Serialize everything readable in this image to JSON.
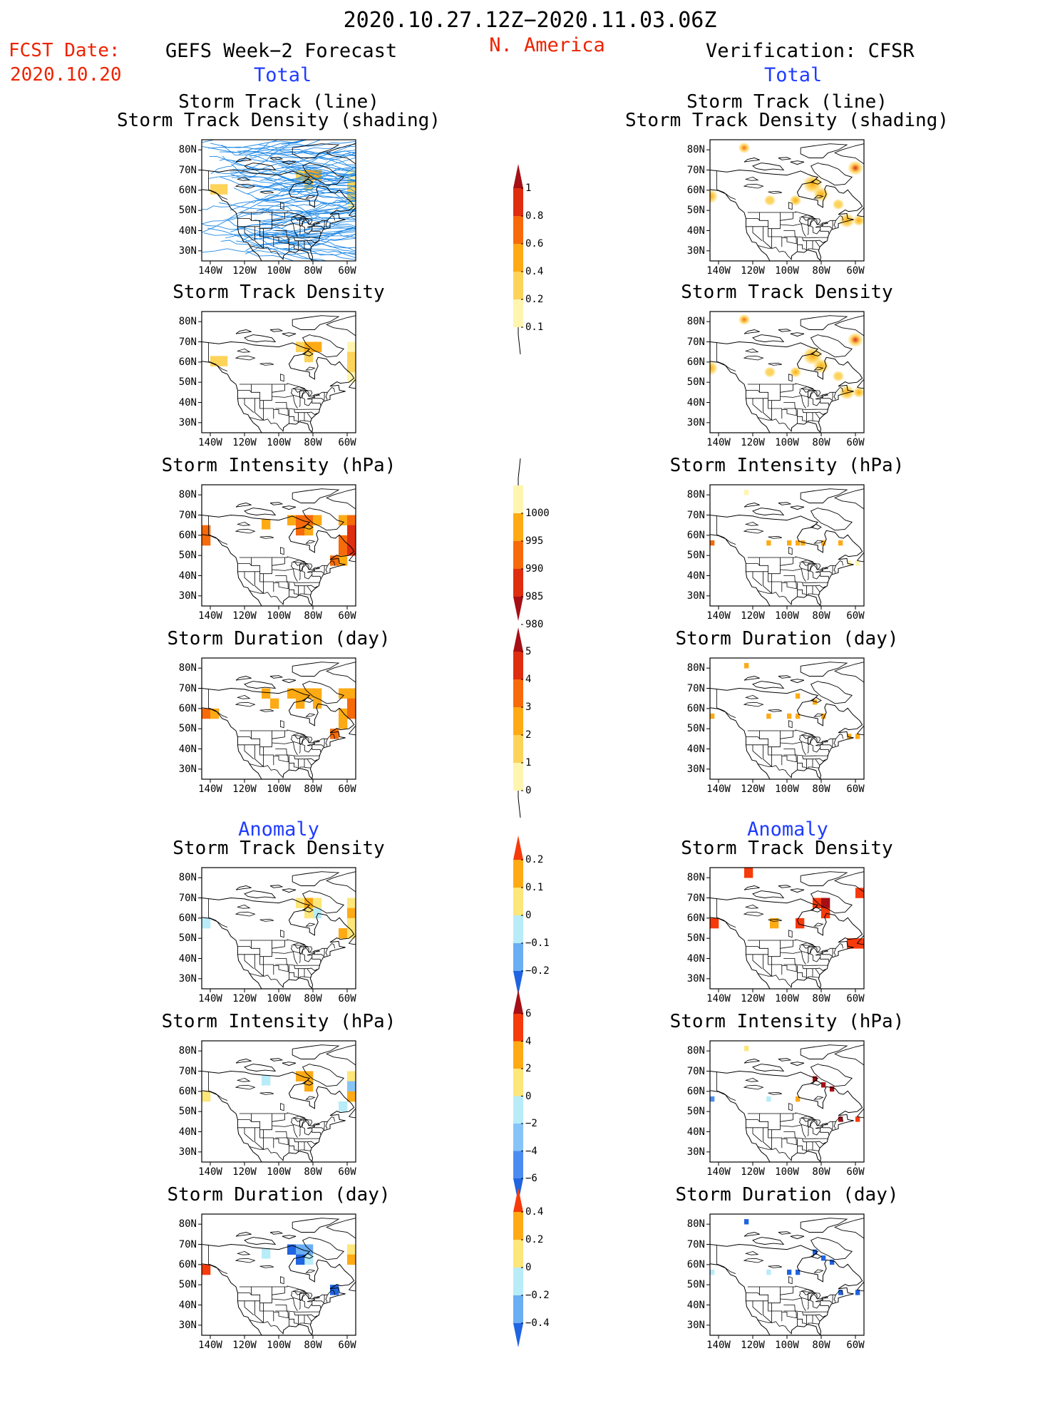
{
  "header": {
    "date_range": "2020.10.27.12Z−2020.11.03.06Z",
    "region": "N. America",
    "fcst_label": "FCST Date:",
    "fcst_date": "2020.10.20",
    "model": "GEFS Week−2 Forecast",
    "verification": "Verification: CFSR",
    "total_left": "Total",
    "total_right": "Total",
    "anomaly_left": "Anomaly",
    "anomaly_right": "Anomaly"
  },
  "axes": {
    "lat_ticks": [
      "80N",
      "70N",
      "60N",
      "50N",
      "40N",
      "30N"
    ],
    "lon_ticks": [
      "140W",
      "120W",
      "100W",
      "80W",
      "60W"
    ],
    "lat_range": [
      25,
      85
    ],
    "lon_range": [
      -145,
      -55
    ]
  },
  "panel_titles": {
    "track1": "Storm Track (line)",
    "track2": "Storm Track Density (shading)",
    "density": "Storm Track Density",
    "intensity": "Storm Intensity (hPa)",
    "duration": "Storm Duration (day)"
  },
  "colorbars": {
    "density": {
      "labels": [
        "1",
        "0.8",
        "0.6",
        "0.4",
        "0.2",
        "0.1"
      ],
      "colors": [
        "#a50f15",
        "#de2d0f",
        "#f66a0a",
        "#fdaa14",
        "#fdd35a",
        "#fff5b0"
      ]
    },
    "intensity": {
      "labels": [
        "1000",
        "995",
        "990",
        "985",
        "980"
      ],
      "colors": [
        "#fff5b0",
        "#fdaa14",
        "#f66a0a",
        "#de2d0f",
        "#a50f15"
      ]
    },
    "duration": {
      "labels": [
        "5",
        "4",
        "3",
        "2",
        "1",
        "0"
      ],
      "colors": [
        "#a50f15",
        "#de2d0f",
        "#f66a0a",
        "#fdaa14",
        "#fdd35a",
        "#fff5b0"
      ]
    },
    "anom_density": {
      "labels": [
        "0.2",
        "0.1",
        "0",
        "−0.1",
        "−0.2"
      ],
      "colors": [
        "#f63a0a",
        "#fdaa14",
        "#fde67a",
        "#b8ecf8",
        "#6aaef4",
        "#1f64e0"
      ]
    },
    "anom_intensity": {
      "labels": [
        "6",
        "4",
        "2",
        "0",
        "−2",
        "−4",
        "−6"
      ],
      "colors": [
        "#a50f15",
        "#f63a0a",
        "#fdaa14",
        "#fde67a",
        "#b8ecf8",
        "#86c4f8",
        "#4c8cf0",
        "#1f64e0"
      ]
    },
    "anom_duration": {
      "labels": [
        "0.4",
        "0.2",
        "0",
        "−0.2",
        "−0.4"
      ],
      "colors": [
        "#f63a0a",
        "#fdaa14",
        "#fde67a",
        "#b8ecf8",
        "#6aaef4",
        "#1f64e0"
      ]
    }
  },
  "fields": {
    "fc_density": [
      [
        -140,
        58,
        5,
        "#fdd35a"
      ],
      [
        -135,
        58,
        5,
        "#fdd35a"
      ],
      [
        -90,
        65,
        5,
        "#fdd35a"
      ],
      [
        -85,
        65,
        5,
        "#fdaa14"
      ],
      [
        -80,
        65,
        5,
        "#fdaa14"
      ],
      [
        -85,
        60,
        5,
        "#fdd35a"
      ],
      [
        -60,
        65,
        5,
        "#fff5b0"
      ],
      [
        -60,
        60,
        5,
        "#fdd35a"
      ],
      [
        -60,
        55,
        5,
        "#fdd35a"
      ],
      [
        -60,
        50,
        5,
        "#fff5b0"
      ]
    ],
    "fc_intensity": [
      [
        -145,
        55,
        5,
        "#f66a0a"
      ],
      [
        -145,
        60,
        5,
        "#f66a0a"
      ],
      [
        -110,
        63,
        5,
        "#fdaa14"
      ],
      [
        -95,
        65,
        5,
        "#fdaa14"
      ],
      [
        -90,
        65,
        5,
        "#f66a0a"
      ],
      [
        -85,
        65,
        5,
        "#f66a0a"
      ],
      [
        -80,
        65,
        5,
        "#fdaa14"
      ],
      [
        -90,
        60,
        5,
        "#f66a0a"
      ],
      [
        -85,
        60,
        5,
        "#fdaa14"
      ],
      [
        -65,
        65,
        5,
        "#fdaa14"
      ],
      [
        -60,
        65,
        5,
        "#f66a0a"
      ],
      [
        -60,
        60,
        5,
        "#de2d0f"
      ],
      [
        -55,
        60,
        5,
        "#de2d0f"
      ],
      [
        -65,
        55,
        5,
        "#f66a0a"
      ],
      [
        -60,
        55,
        5,
        "#de2d0f"
      ],
      [
        -55,
        55,
        5,
        "#a50f15"
      ],
      [
        -65,
        50,
        5,
        "#f66a0a"
      ],
      [
        -60,
        50,
        5,
        "#de2d0f"
      ],
      [
        -70,
        45,
        5,
        "#f66a0a"
      ],
      [
        -65,
        45,
        5,
        "#fdaa14"
      ]
    ],
    "fc_duration": [
      [
        -145,
        55,
        5,
        "#f66a0a"
      ],
      [
        -140,
        55,
        5,
        "#fdaa14"
      ],
      [
        -110,
        65,
        5,
        "#fdaa14"
      ],
      [
        -105,
        60,
        5,
        "#fdaa14"
      ],
      [
        -95,
        65,
        5,
        "#fdaa14"
      ],
      [
        -90,
        65,
        5,
        "#fdaa14"
      ],
      [
        -85,
        65,
        5,
        "#fdaa14"
      ],
      [
        -80,
        65,
        5,
        "#fdaa14"
      ],
      [
        -90,
        60,
        5,
        "#fdaa14"
      ],
      [
        -80,
        60,
        5,
        "#fdaa14"
      ],
      [
        -65,
        65,
        5,
        "#fdaa14"
      ],
      [
        -60,
        65,
        5,
        "#fdaa14"
      ],
      [
        -60,
        60,
        5,
        "#f66a0a"
      ],
      [
        -55,
        60,
        5,
        "#f66a0a"
      ],
      [
        -65,
        55,
        5,
        "#fdaa14"
      ],
      [
        -60,
        55,
        5,
        "#f66a0a"
      ],
      [
        -55,
        55,
        5,
        "#f66a0a"
      ],
      [
        -65,
        50,
        5,
        "#fdaa14"
      ],
      [
        -70,
        45,
        5,
        "#f66a0a"
      ]
    ],
    "fc_anom_density": [
      [
        -145,
        55,
        5,
        "#b8ecf8"
      ],
      [
        -90,
        65,
        5,
        "#fde67a"
      ],
      [
        -85,
        65,
        5,
        "#fdaa14"
      ],
      [
        -80,
        65,
        5,
        "#fde67a"
      ],
      [
        -85,
        60,
        5,
        "#fde67a"
      ],
      [
        -80,
        60,
        5,
        "#b8ecf8"
      ],
      [
        -60,
        65,
        5,
        "#fde67a"
      ],
      [
        -60,
        60,
        5,
        "#fdaa14"
      ],
      [
        -60,
        55,
        5,
        "#fde67a"
      ],
      [
        -65,
        50,
        5,
        "#fdaa14"
      ],
      [
        -60,
        50,
        5,
        "#fde67a"
      ]
    ],
    "fc_anom_intensity": [
      [
        -145,
        55,
        5,
        "#fde67a"
      ],
      [
        -90,
        65,
        5,
        "#fdaa14"
      ],
      [
        -85,
        65,
        5,
        "#fdaa14"
      ],
      [
        -85,
        60,
        5,
        "#fdaa14"
      ],
      [
        -110,
        63,
        5,
        "#b8ecf8"
      ],
      [
        -60,
        65,
        5,
        "#fde67a"
      ],
      [
        -60,
        60,
        5,
        "#86c4f8"
      ],
      [
        -55,
        55,
        5,
        "#4c8cf0"
      ],
      [
        -60,
        55,
        5,
        "#fdaa14"
      ],
      [
        -65,
        50,
        5,
        "#b8ecf8"
      ]
    ],
    "fc_anom_duration": [
      [
        -145,
        55,
        5,
        "#f63a0a"
      ],
      [
        -110,
        63,
        5,
        "#b8ecf8"
      ],
      [
        -95,
        65,
        5,
        "#1f64e0"
      ],
      [
        -90,
        65,
        5,
        "#6aaef4"
      ],
      [
        -85,
        65,
        5,
        "#6aaef4"
      ],
      [
        -85,
        60,
        5,
        "#b8ecf8"
      ],
      [
        -90,
        60,
        5,
        "#1f64e0"
      ],
      [
        -60,
        65,
        5,
        "#fde67a"
      ],
      [
        -60,
        60,
        5,
        "#fdaa14"
      ],
      [
        -55,
        55,
        5,
        "#b8ecf8"
      ],
      [
        -70,
        45,
        5,
        "#1f64e0"
      ]
    ],
    "ver_intensity": [
      [
        -145,
        55,
        2.5,
        "#f66a0a"
      ],
      [
        -112,
        55,
        2.5,
        "#fdaa14"
      ],
      [
        -100,
        55,
        2.5,
        "#fdaa14"
      ],
      [
        -95,
        55,
        2.5,
        "#fdaa14"
      ],
      [
        -92,
        55,
        2.5,
        "#fdaa14"
      ],
      [
        -80,
        55,
        2.5,
        "#fdaa14"
      ],
      [
        -70,
        55,
        2.5,
        "#fdaa14"
      ],
      [
        -65,
        45,
        2.5,
        "#fff5b0"
      ],
      [
        -60,
        45,
        2.5,
        "#fff5b0"
      ],
      [
        -55,
        45,
        2.5,
        "#f66a0a"
      ],
      [
        -125,
        80,
        2.5,
        "#fff5b0"
      ]
    ],
    "ver_duration": [
      [
        -125,
        80,
        2.5,
        "#fdaa14"
      ],
      [
        -145,
        55,
        2.5,
        "#fdaa14"
      ],
      [
        -112,
        55,
        2.5,
        "#fdaa14"
      ],
      [
        -100,
        55,
        2.5,
        "#fdaa14"
      ],
      [
        -95,
        55,
        2.5,
        "#fdaa14"
      ],
      [
        -80,
        55,
        2.5,
        "#fdaa14"
      ],
      [
        -65,
        45,
        2.5,
        "#fdaa14"
      ],
      [
        -60,
        45,
        2.5,
        "#fdaa14"
      ],
      [
        -55,
        45,
        2.5,
        "#fdaa14"
      ],
      [
        -85,
        62,
        2.5,
        "#fdaa14"
      ],
      [
        -95,
        65,
        2.5,
        "#fdaa14"
      ]
    ],
    "ver_anom_density": [
      [
        -125,
        80,
        5,
        "#f63a0a"
      ],
      [
        -60,
        70,
        5,
        "#f63a0a"
      ],
      [
        -55,
        70,
        5,
        "#f63a0a"
      ],
      [
        -145,
        55,
        5,
        "#f63a0a"
      ],
      [
        -85,
        65,
        5,
        "#f63a0a"
      ],
      [
        -80,
        65,
        5,
        "#a50f15"
      ],
      [
        -80,
        60,
        5,
        "#f63a0a"
      ],
      [
        -95,
        55,
        5,
        "#f63a0a"
      ],
      [
        -110,
        55,
        5,
        "#fdaa14"
      ],
      [
        -65,
        45,
        5,
        "#f63a0a"
      ],
      [
        -60,
        45,
        5,
        "#f63a0a"
      ]
    ],
    "ver_anom_intensity": [
      [
        -125,
        80,
        2.5,
        "#fde67a"
      ],
      [
        -145,
        55,
        2.5,
        "#4c8cf0"
      ],
      [
        -85,
        65,
        2.5,
        "#a50f15"
      ],
      [
        -80,
        62,
        2.5,
        "#a50f15"
      ],
      [
        -75,
        60,
        2.5,
        "#a50f15"
      ],
      [
        -95,
        55,
        2.5,
        "#fdaa14"
      ],
      [
        -112,
        55,
        2.5,
        "#b8ecf8"
      ],
      [
        -70,
        45,
        2.5,
        "#a50f15"
      ],
      [
        -60,
        45,
        2.5,
        "#f63a0a"
      ],
      [
        -55,
        45,
        2.5,
        "#f63a0a"
      ]
    ],
    "ver_anom_duration": [
      [
        -125,
        80,
        2.5,
        "#1f64e0"
      ],
      [
        -145,
        55,
        2.5,
        "#b8ecf8"
      ],
      [
        -85,
        65,
        2.5,
        "#1f64e0"
      ],
      [
        -80,
        62,
        2.5,
        "#1f64e0"
      ],
      [
        -75,
        60,
        2.5,
        "#1f64e0"
      ],
      [
        -95,
        55,
        2.5,
        "#1f64e0"
      ],
      [
        -100,
        55,
        2.5,
        "#1f64e0"
      ],
      [
        -112,
        55,
        2.5,
        "#b8ecf8"
      ],
      [
        -70,
        45,
        2.5,
        "#1f64e0"
      ],
      [
        -60,
        45,
        2.5,
        "#1f64e0"
      ],
      [
        -55,
        45,
        2.5,
        "#1f64e0"
      ]
    ]
  },
  "blobs": {
    "ver_density": [
      [
        -125,
        81,
        3,
        "#f66a0a"
      ],
      [
        -60,
        71,
        4,
        "#de2d0f"
      ],
      [
        -145,
        57,
        4,
        "#fdaa14"
      ],
      [
        -85,
        63,
        5,
        "#fdaa14"
      ],
      [
        -80,
        58,
        4,
        "#fdaa14"
      ],
      [
        -95,
        55,
        3,
        "#fdaa14"
      ],
      [
        -110,
        55,
        3,
        "#fdd35a"
      ],
      [
        -70,
        53,
        3,
        "#fdd35a"
      ],
      [
        -65,
        45,
        4,
        "#fdaa14"
      ],
      [
        -58,
        45,
        3,
        "#fdaa14"
      ]
    ]
  }
}
